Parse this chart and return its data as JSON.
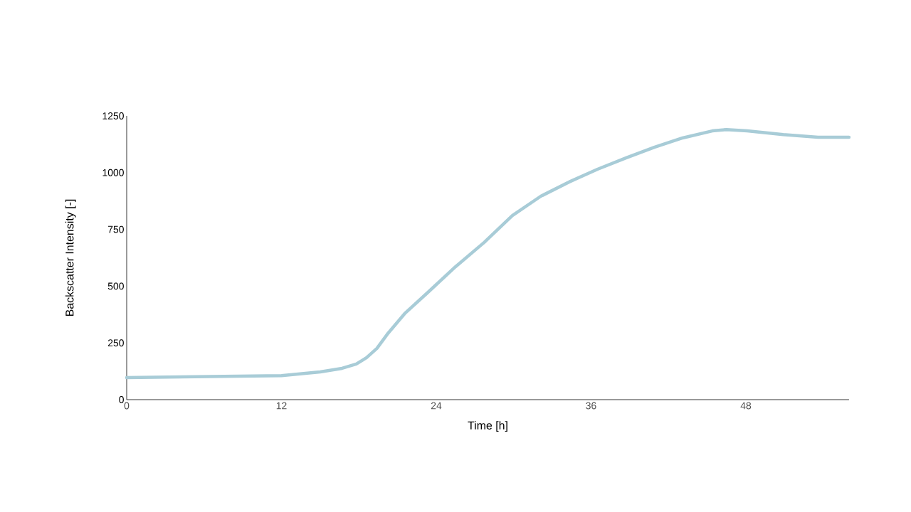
{
  "chart_data": {
    "type": "line",
    "xlabel": "Time [h]",
    "ylabel": "Backscatter Intensity [-]",
    "xlim": [
      0,
      56
    ],
    "ylim": [
      0,
      1250
    ],
    "xticks": [
      0,
      12,
      24,
      36,
      48
    ],
    "yticks": [
      0,
      250,
      500,
      750,
      1000,
      1250
    ],
    "grid": false,
    "marker": "none",
    "line_style": "solid",
    "series": [
      {
        "color": "#a8ccd7",
        "x": [
          0,
          12,
          15,
          16.7,
          17.8,
          18.6,
          19.4,
          20.2,
          21.6,
          23.3,
          25.5,
          27.7,
          29.9,
          32.1,
          34.3,
          36.5,
          38.7,
          40.9,
          43.1,
          45.4,
          46.5,
          48.1,
          50.9,
          53.6,
          56
        ],
        "values": [
          97,
          106,
          122,
          138,
          157,
          185,
          226,
          288,
          382,
          470,
          586,
          692,
          811,
          896,
          959,
          1015,
          1065,
          1112,
          1153,
          1184,
          1190,
          1184,
          1168,
          1156,
          1156
        ]
      }
    ]
  }
}
